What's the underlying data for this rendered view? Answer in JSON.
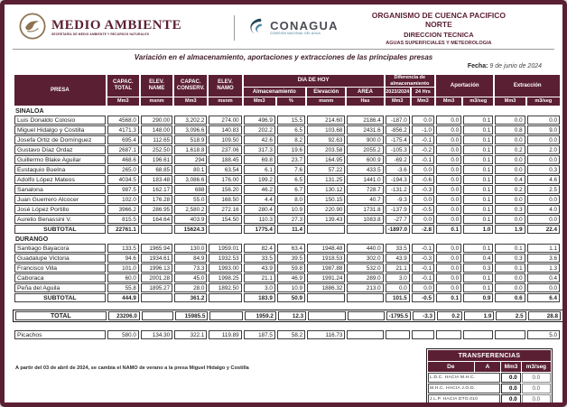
{
  "branding": {
    "medio_ambiente": {
      "name": "MEDIO AMBIENTE",
      "secretaria": "SECRETARÍA DE MEDIO AMBIENTE Y RECURSOS NATURALES"
    },
    "conagua": {
      "name": "CONAGUA",
      "subtitle": "COMISIÓN NACIONAL DEL AGUA"
    }
  },
  "org_header": {
    "line1": "ORGANISMO DE CUENCA PACIFICO NORTE",
    "line2": "DIRECCION TECNICA",
    "line3": "AGUAS SUPERFICIALES Y METEOROLOGIA"
  },
  "report": {
    "title": "Variación en el almacenamiento, aportaciones y extracciones de las principales presas",
    "fecha_label": "Fecha:",
    "fecha_value": "9 de junio de 2024"
  },
  "table": {
    "headers": {
      "presa": "PRESA",
      "capac_total": "CAPAC. TOTAL",
      "elev_name": "ELEV. NAME",
      "capac_conserv": "CAPAC. CONSERV.",
      "elev_namo": "ELEV. NAMO",
      "dia_de_hoy": "DIA DE HOY",
      "almacenamiento": "Almacenamiento",
      "elevacion": "Elevación",
      "area": "AREA",
      "diferencia": "Diferencia de almacenamiento",
      "dif_2023": "2023/2024",
      "dif_24hrs": "24 Hrs",
      "aportacion": "Aportación",
      "extraccion": "Extracción"
    },
    "units": {
      "mm3": "Mm3",
      "msnm": "msnm",
      "pct": "%",
      "has": "Has",
      "m3seg": "m3/seg"
    },
    "subtotal_label": "SUBTOTAL",
    "sections": [
      {
        "name": "SINALOA",
        "rows": [
          {
            "name": "Luis Donaldo Colosio",
            "values": [
              "4568.0",
              "290.00",
              "3,202.2",
              "274.00",
              "496.9",
              "15.5",
              "214.60",
              "2186.4",
              "-187.0",
              "0.0",
              "0.0",
              "0.1",
              "0.0",
              "0.0"
            ]
          },
          {
            "name": "Miguel Hidalgo y Costilla",
            "values": [
              "4171.3",
              "148.00",
              "3,096.6",
              "140.83",
              "202.2",
              "6.5",
              "103.68",
              "2431.6",
              "-856.2",
              "-1.0",
              "0.0",
              "0.1",
              "0.8",
              "9.0"
            ]
          },
          {
            "name": "Josefa Ortiz de Domínguez",
            "values": [
              "695.4",
              "112.65",
              "518.9",
              "109.50",
              "42.6",
              "8.2",
              "92.63",
              "900.0",
              "-175.4",
              "-0.1",
              "0.0",
              "0.1",
              "0.0",
              "0.0"
            ]
          },
          {
            "name": "Gustavo Díaz Ordaz",
            "values": [
              "2687.1",
              "252.50",
              "1,618.8",
              "237.06",
              "317.3",
              "19.6",
              "203.58",
              "2055.2",
              "-105.3",
              "-0.2",
              "0.0",
              "0.1",
              "0.2",
              "2.0"
            ]
          },
          {
            "name": "Guillermo Blake Aguilar",
            "values": [
              "468.6",
              "196.61",
              "294",
              "188.45",
              "69.8",
              "23.7",
              "164.95",
              "600.9",
              "-69.2",
              "-0.1",
              "0.0",
              "0.1",
              "0.0",
              "0.0"
            ]
          },
          {
            "name": "Eustaquio Buelna",
            "values": [
              "265.0",
              "68.85",
              "80.1",
              "63.54",
              "6.1",
              "7.6",
              "57.22",
              "433.5",
              "-3.6",
              "0.0",
              "0.0",
              "0.1",
              "0.0",
              "0.3"
            ]
          },
          {
            "name": "Adolfo López Mateos",
            "values": [
              "4034.5",
              "183.48",
              "3,086.6",
              "176.00",
              "199.2",
              "6.5",
              "131.25",
              "1441.0",
              "-194.3",
              "-0.6",
              "0.0",
              "0.1",
              "0.4",
              "4.6"
            ]
          },
          {
            "name": "Sanalona",
            "values": [
              "987.5",
              "162.17",
              "688",
              "156.20",
              "46.2",
              "6.7",
              "130.12",
              "728.7",
              "-131.2",
              "-0.3",
              "0.0",
              "0.1",
              "0.2",
              "2.5"
            ]
          },
          {
            "name": "Juan Guerrero Alcocer",
            "values": [
              "102.0",
              "176.28",
              "55.0",
              "168.50",
              "4.4",
              "8.0",
              "150.15",
              "40.7",
              "-9.3",
              "0.0",
              "0.0",
              "0.1",
              "0.0",
              "0.0"
            ]
          },
          {
            "name": "José López Portillo",
            "values": [
              "3966.2",
              "286.95",
              "2,580.2",
              "272.16",
              "280.4",
              "10.9",
              "220.90",
              "1731.8",
              "-137.9",
              "-0.5",
              "0.0",
              "0.1",
              "0.3",
              "4.0"
            ]
          },
          {
            "name": "Aurelio Benassini V.",
            "values": [
              "815.5",
              "164.64",
              "403.9",
              "154.50",
              "110.3",
              "27.3",
              "139.43",
              "1083.8",
              "-27.7",
              "0.0",
              "0.0",
              "0.1",
              "0.0",
              "0.0"
            ]
          }
        ],
        "subtotal": [
          "22761.1",
          "",
          "15624.3",
          "",
          "1775.4",
          "11.4",
          "",
          "",
          "-1897.0",
          "-2.8",
          "0.1",
          "1.0",
          "1.9",
          "22.4"
        ]
      },
      {
        "name": "DURANGO",
        "rows": [
          {
            "name": "Santiago Bayacora",
            "values": [
              "133.5",
              "1965.94",
              "130.0",
              "1959.01",
              "82.4",
              "63.4",
              "1948.48",
              "440.0",
              "33.5",
              "-0.1",
              "0.0",
              "0.1",
              "0.1",
              "1.1"
            ]
          },
          {
            "name": "Guadalupe Victoria",
            "values": [
              "94.6",
              "1934.61",
              "84.9",
              "1932.53",
              "33.5",
              "39.5",
              "1918.53",
              "302.0",
              "43.9",
              "-0.3",
              "0.0",
              "0.4",
              "0.3",
              "3.6"
            ]
          },
          {
            "name": "Francisco Villa",
            "values": [
              "101.0",
              "1996.13",
              "73.3",
              "1993.00",
              "43.9",
              "59.8",
              "1987.88",
              "532.0",
              "21.1",
              "-0.1",
              "0.0",
              "0.3",
              "0.1",
              "1.3"
            ]
          },
          {
            "name": "Caboraca",
            "values": [
              "60.0",
              "2001.28",
              "45.0",
              "1998.25",
              "21.1",
              "46.9",
              "1991.24",
              "289.0",
              "3.0",
              "-0.1",
              "0.0",
              "0.1",
              "0.0",
              "0.4"
            ]
          },
          {
            "name": "Peña del Aguila",
            "values": [
              "55.8",
              "1895.27",
              "28.0",
              "1892.50",
              "3.0",
              "10.9",
              "1886.32",
              "213.0",
              "0.0",
              "0.0",
              "0.0",
              "0.1",
              "0.0",
              "0.0"
            ]
          }
        ],
        "subtotal": [
          "444.9",
          "",
          "361.2",
          "",
          "183.9",
          "50.9",
          "",
          "",
          "101.5",
          "-0.5",
          "0.1",
          "0.9",
          "0.6",
          "6.4"
        ]
      }
    ],
    "total_label": "TOTAL",
    "total": [
      "23206.0",
      "",
      "15985.5",
      "",
      "1959.2",
      "12.3",
      "",
      "",
      "-1795.5",
      "-3.3",
      "0.2",
      "1.9",
      "2.5",
      "28.8"
    ],
    "extra_row": {
      "name": "Picachos",
      "values": [
        "580.0",
        "134.30",
        "322.1",
        "119.89",
        "187.5",
        "58.2",
        "116.73",
        "",
        "",
        "",
        "",
        "",
        "",
        "5.0"
      ]
    }
  },
  "footnote": "A partir del 03 de abril de 2024, se cambia el NAMO de verano a la presa Miguel Hidalgo y Costilla",
  "transferencias": {
    "title": "TRANSFERENCIAS",
    "col_de": "De",
    "col_a": "A",
    "col_mm3": "Mm3",
    "col_m3seg": "m3/seg",
    "rows": [
      {
        "route": "L.D.C.  HACIA  M.H.C.",
        "mm3": "0.0",
        "m3seg": "0.0"
      },
      {
        "route": "M.H.C.  HACIA  J.O.D.",
        "mm3": "0.0",
        "m3seg": "0.0"
      },
      {
        "route": "J.L.P. HACIA DTO.010",
        "mm3": "0.0",
        "m3seg": "0.0"
      }
    ]
  },
  "colors": {
    "maroon": "#5b1f33",
    "seal_gold": "#8d7352",
    "conagua_teal": "#36778c",
    "conagua_dark": "#24475a"
  }
}
